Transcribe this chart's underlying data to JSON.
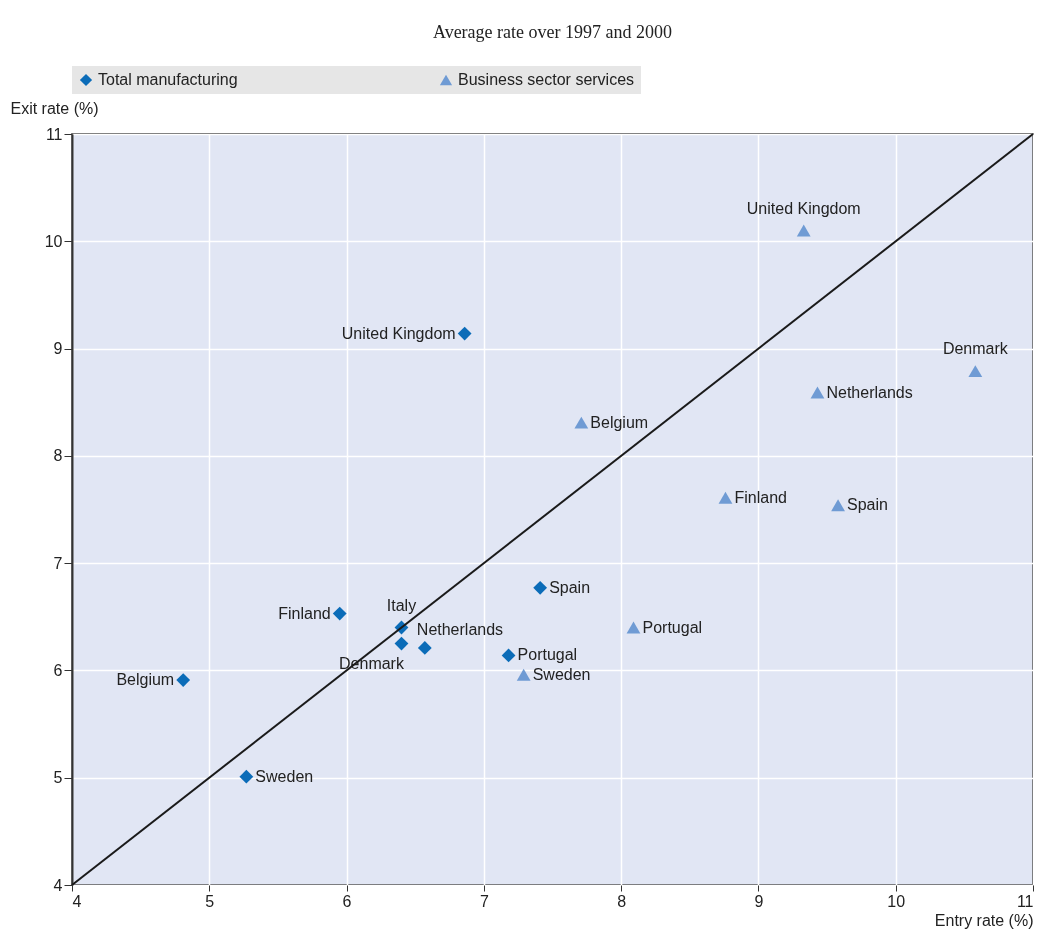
{
  "chart_data": {
    "type": "scatter",
    "subtitle": "Average rate over 1997 and 2000",
    "xlabel": "Entry rate (%)",
    "ylabel": "Exit rate (%)",
    "xlim": [
      4,
      11
    ],
    "xticks": [
      4,
      5,
      6,
      7,
      8,
      9,
      10,
      11
    ],
    "ylim": [
      4,
      11
    ],
    "yticks": [
      4,
      5,
      6,
      7,
      8,
      9,
      10,
      11
    ],
    "grid": true,
    "legend": "top",
    "series": [
      {
        "name": "Total manufacturing",
        "marker": "diamond",
        "color": "#0b6cb8",
        "x": [
          6.86,
          7.41,
          5.95,
          6.4,
          6.4,
          6.57,
          7.18,
          4.81,
          5.27
        ],
        "values": [
          9.14,
          6.77,
          6.53,
          6.4,
          6.25,
          6.21,
          6.14,
          5.91,
          5.01
        ],
        "value_labels": [
          "United Kingdom",
          "Spain",
          "Finland",
          "Italy",
          "Denmark",
          "Netherlands",
          "Portugal",
          "Belgium",
          "Sweden"
        ]
      },
      {
        "name": "Business sector services",
        "marker": "triangle",
        "color": "#6f9bd4",
        "x": [
          9.33,
          10.58,
          9.43,
          7.71,
          8.76,
          9.58,
          8.09,
          7.29
        ],
        "values": [
          10.1,
          8.79,
          8.59,
          8.31,
          7.61,
          7.54,
          6.4,
          5.96
        ],
        "value_labels": [
          "United Kingdom",
          "Denmark",
          "Netherlands",
          "Belgium",
          "Finland",
          "Spain",
          "Portugal",
          "Sweden"
        ]
      },
      {
        "type": "line",
        "color": "#1a1a1a",
        "marker": "none",
        "x": [
          4,
          11
        ],
        "values": [
          4,
          11
        ]
      }
    ]
  }
}
